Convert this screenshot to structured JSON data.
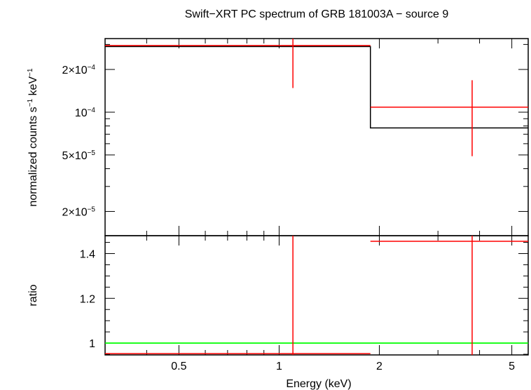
{
  "chart_data": {
    "type": "scatter",
    "title": "Swift−XRT PC spectrum of GRB 181003A − source 9",
    "xlabel": "Energy (keV)",
    "xscale": "log",
    "xlim": [
      0.3,
      5.6
    ],
    "x_ticks": [
      {
        "value": 0.5,
        "label": "0.5"
      },
      {
        "value": 1,
        "label": "1"
      },
      {
        "value": 2,
        "label": "2"
      },
      {
        "value": 5,
        "label": "5"
      }
    ],
    "panels": [
      {
        "id": "spectrum",
        "ylabel_main": "normalized counts s",
        "ylabel_sup1": "−1",
        "ylabel_mid": " keV",
        "ylabel_sup2": "−1",
        "yscale": "log",
        "ylim": [
          1.35e-05,
          0.00033
        ],
        "y_ticks": [
          {
            "value": 0.0002,
            "base": "2×10",
            "exp": "−4"
          },
          {
            "value": 0.0001,
            "base": "10",
            "exp": "−4"
          },
          {
            "value": 5e-05,
            "base": "5×10",
            "exp": "−5"
          },
          {
            "value": 2e-05,
            "base": "2×10",
            "exp": "−5"
          }
        ],
        "data_points": [
          {
            "x_low": 0.3,
            "x_high": 1.88,
            "x": 1.1,
            "y": 0.000295,
            "y_low": 0.000148,
            "y_high": 0.00033
          },
          {
            "x_low": 1.88,
            "x_high": 5.6,
            "x": 3.8,
            "y": 0.0001085,
            "y_low": 4.9e-05,
            "y_high": 0.000168
          }
        ],
        "model_steps": [
          {
            "x_low": 0.3,
            "x_high": 1.88,
            "y": 0.00029
          },
          {
            "x_low": 1.88,
            "x_high": 5.6,
            "y": 7.75e-05
          }
        ]
      },
      {
        "id": "ratio",
        "ylabel": "ratio",
        "yscale": "linear",
        "ylim": [
          0.947,
          1.48
        ],
        "y_ticks": [
          {
            "value": 1.4,
            "label": "1.4"
          },
          {
            "value": 1.2,
            "label": "1.2"
          },
          {
            "value": 1,
            "label": "1"
          }
        ],
        "reference_line": 1,
        "data_points": [
          {
            "x_low": 0.3,
            "x_high": 1.88,
            "x": 1.1,
            "y": 0.953,
            "y_low": 0.947,
            "y_high": 1.48
          },
          {
            "x_low": 1.88,
            "x_high": 5.6,
            "x": 3.8,
            "y": 1.455,
            "y_low": 0.947,
            "y_high": 1.48
          }
        ]
      }
    ],
    "colors": {
      "data": "#ff0000",
      "model": "#000000",
      "reference": "#00ff00",
      "axes": "#000000"
    }
  }
}
